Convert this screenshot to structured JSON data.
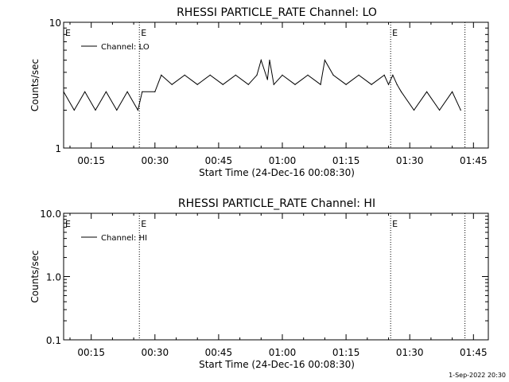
{
  "chart_data": [
    {
      "type": "line",
      "title": "RHESSI PARTICLE_RATE Channel: LO",
      "xlabel": "Start Time (24-Dec-16 00:08:30)",
      "ylabel": "Counts/sec",
      "yscale": "log",
      "ylim": [
        1,
        10
      ],
      "xlim_minutes": [
        8.5,
        108.5
      ],
      "xticks": [
        "00:15",
        "00:30",
        "00:45",
        "01:00",
        "01:15",
        "01:30",
        "01:45"
      ],
      "yticks": [
        "1",
        "10"
      ],
      "legend": "Channel: LO",
      "legend_placement": "top-left",
      "event_markers": [
        {
          "x": "00:26:20",
          "label": "E"
        },
        {
          "x": "01:25:30",
          "label": "E"
        },
        {
          "x": "01:43:00",
          "label": ""
        }
      ],
      "series": [
        {
          "name": "Channel: LO",
          "x": [
            "00:08:30",
            "00:11:00",
            "00:13:30",
            "00:16:00",
            "00:18:30",
            "00:21:00",
            "00:23:30",
            "00:26:00",
            "00:27:00",
            "00:30:00",
            "00:31:30",
            "00:34:00",
            "00:37:00",
            "00:40:00",
            "00:43:00",
            "00:46:00",
            "00:49:00",
            "00:52:00",
            "00:54:00",
            "00:55:00",
            "00:56:30",
            "00:57:00",
            "00:58:00",
            "01:00:00",
            "01:03:00",
            "01:06:00",
            "01:09:00",
            "01:10:00",
            "01:12:00",
            "01:15:00",
            "01:18:00",
            "01:21:00",
            "01:24:00",
            "01:25:00",
            "01:26:00",
            "01:27:00",
            "01:28:00",
            "01:31:00",
            "01:34:00",
            "01:37:00",
            "01:40:00",
            "01:42:00"
          ],
          "values": [
            2.8,
            2.0,
            2.8,
            2.0,
            2.8,
            2.0,
            2.8,
            2.0,
            2.8,
            2.8,
            3.8,
            3.2,
            3.8,
            3.2,
            3.8,
            3.2,
            3.8,
            3.2,
            3.8,
            5.0,
            3.5,
            5.0,
            3.2,
            3.8,
            3.2,
            3.8,
            3.2,
            5.0,
            3.8,
            3.2,
            3.8,
            3.2,
            3.8,
            3.2,
            3.8,
            3.2,
            2.8,
            2.0,
            2.8,
            2.0,
            2.8,
            2.0
          ]
        }
      ]
    },
    {
      "type": "line",
      "title": "RHESSI PARTICLE_RATE Channel: HI",
      "xlabel": "Start Time (24-Dec-16 00:08:30)",
      "ylabel": "Counts/sec",
      "yscale": "log",
      "ylim": [
        0.1,
        10
      ],
      "xlim_minutes": [
        8.5,
        108.5
      ],
      "xticks": [
        "00:15",
        "00:30",
        "00:45",
        "01:00",
        "01:15",
        "01:30",
        "01:45"
      ],
      "yticks": [
        "0.1",
        "1.0",
        "10.0"
      ],
      "legend": "Channel: HI",
      "legend_placement": "top-left",
      "event_markers": [
        {
          "x": "00:26:20",
          "label": "E"
        },
        {
          "x": "01:25:30",
          "label": "E"
        },
        {
          "x": "01:43:00",
          "label": ""
        }
      ],
      "series": [
        {
          "name": "Channel: HI",
          "x": [],
          "values": []
        }
      ]
    }
  ],
  "footer": {
    "timestamp": "1-Sep-2022 20:30"
  }
}
